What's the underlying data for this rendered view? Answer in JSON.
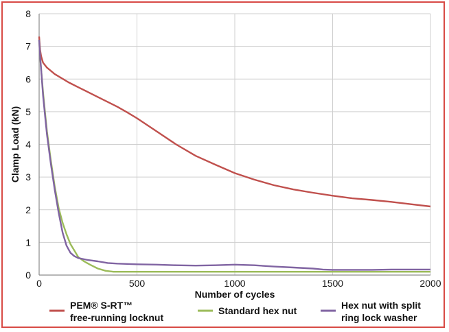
{
  "chart_data": {
    "type": "line",
    "title": "",
    "xlabel": "Number of cycles",
    "ylabel": "Clamp Load (kN)",
    "xlim": [
      0,
      2000
    ],
    "ylim": [
      0,
      8
    ],
    "xticks": [
      0,
      500,
      1000,
      1500,
      2000
    ],
    "yticks": [
      0,
      1,
      2,
      3,
      4,
      5,
      6,
      7,
      8
    ],
    "grid": true,
    "legend_position": "bottom",
    "series": [
      {
        "name_lines": [
          "PEM® S-RT™",
          "free-running locknut"
        ],
        "color": "#c0504d",
        "x": [
          0,
          5,
          10,
          20,
          40,
          60,
          80,
          100,
          150,
          200,
          250,
          300,
          350,
          400,
          450,
          500,
          600,
          700,
          800,
          900,
          1000,
          1100,
          1200,
          1300,
          1400,
          1500,
          1600,
          1700,
          1800,
          1900,
          2000
        ],
        "y": [
          7.3,
          6.9,
          6.7,
          6.5,
          6.35,
          6.25,
          6.15,
          6.08,
          5.9,
          5.75,
          5.6,
          5.45,
          5.3,
          5.15,
          4.98,
          4.8,
          4.4,
          4.0,
          3.65,
          3.38,
          3.12,
          2.92,
          2.75,
          2.62,
          2.52,
          2.43,
          2.35,
          2.3,
          2.24,
          2.17,
          2.1
        ]
      },
      {
        "name_lines": [
          "Standard hex nut"
        ],
        "color": "#9bbb59",
        "x": [
          0,
          5,
          10,
          20,
          30,
          40,
          60,
          80,
          100,
          120,
          140,
          160,
          180,
          200,
          230,
          260,
          300,
          340,
          370,
          380,
          400,
          500,
          1000,
          1500,
          2000
        ],
        "y": [
          7.2,
          6.7,
          6.3,
          5.6,
          5.0,
          4.4,
          3.5,
          2.7,
          2.05,
          1.6,
          1.25,
          0.95,
          0.75,
          0.55,
          0.42,
          0.32,
          0.2,
          0.13,
          0.11,
          0.1,
          0.1,
          0.1,
          0.1,
          0.1,
          0.1
        ]
      },
      {
        "name_lines": [
          "Hex nut with split",
          "ring lock washer"
        ],
        "color": "#8064a2",
        "x": [
          0,
          5,
          10,
          20,
          30,
          40,
          60,
          80,
          100,
          120,
          140,
          160,
          180,
          200,
          250,
          300,
          350,
          400,
          500,
          600,
          700,
          800,
          900,
          1000,
          1100,
          1200,
          1300,
          1400,
          1450,
          1500,
          1600,
          1700,
          1800,
          1900,
          2000
        ],
        "y": [
          7.2,
          6.7,
          6.3,
          5.5,
          4.9,
          4.3,
          3.4,
          2.6,
          1.9,
          1.3,
          0.9,
          0.68,
          0.58,
          0.52,
          0.46,
          0.42,
          0.37,
          0.35,
          0.33,
          0.32,
          0.3,
          0.29,
          0.3,
          0.32,
          0.3,
          0.26,
          0.23,
          0.2,
          0.17,
          0.16,
          0.16,
          0.16,
          0.17,
          0.17,
          0.17
        ]
      }
    ]
  }
}
